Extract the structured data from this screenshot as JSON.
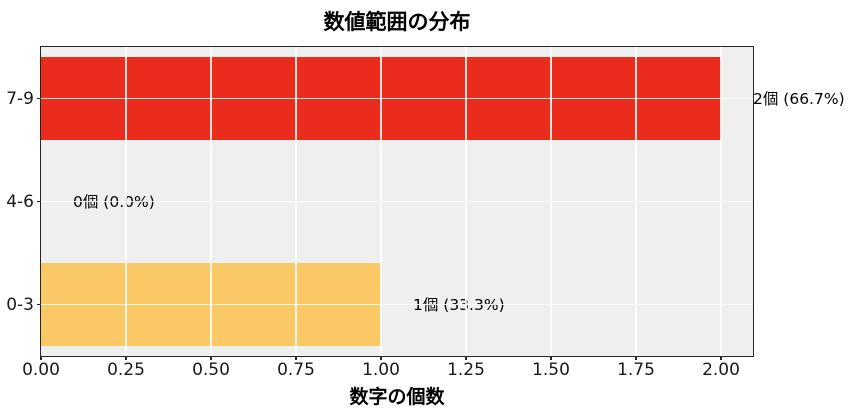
{
  "chart_data": {
    "type": "bar",
    "orientation": "horizontal",
    "title": "数値範囲の分布",
    "xlabel": "数字の個数",
    "ylabel": "",
    "categories": [
      "7-9",
      "4-6",
      "0-3"
    ],
    "values": [
      2,
      0,
      1
    ],
    "bars": [
      {
        "category": "7-9",
        "value": 2,
        "label": "2個 (66.7%)",
        "color": "#eb2b1c"
      },
      {
        "category": "4-6",
        "value": 0,
        "label": "0個 (0.0%)",
        "color": null
      },
      {
        "category": "0-3",
        "value": 1,
        "label": "1個 (33.3%)",
        "color": "#fac864"
      }
    ],
    "x_ticks": [
      "0.00",
      "0.25",
      "0.50",
      "0.75",
      "1.00",
      "1.25",
      "1.50",
      "1.75",
      "2.00"
    ],
    "x_tick_values": [
      0,
      0.25,
      0.5,
      0.75,
      1,
      1.25,
      1.5,
      1.75,
      2
    ],
    "xlim": [
      0,
      2.09
    ],
    "grid": true,
    "legend_position": "none",
    "colors": {
      "plot_background": "#efefef",
      "figure_background": "#ffffff",
      "gridline": "#ffffff",
      "spine": "#262626",
      "text": "#000000"
    }
  }
}
